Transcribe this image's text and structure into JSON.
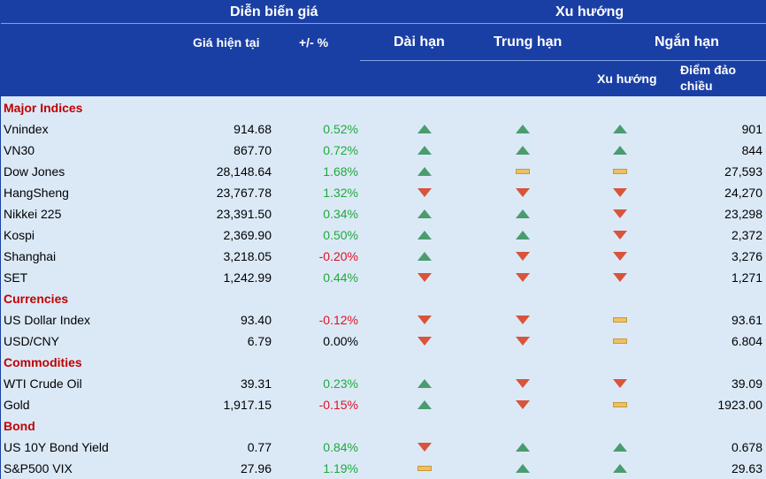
{
  "header": {
    "price_group": "Diễn biến giá",
    "trend_group": "Xu hướng",
    "current_price": "Giá hiện tại",
    "change_pct": "+/- %",
    "long_term": "Dài hạn",
    "mid_term": "Trung hạn",
    "short_term": "Ngắn hạn",
    "short_trend": "Xu hướng",
    "reversal_line1": "Điểm đảo",
    "reversal_line2": "chiều"
  },
  "colors": {
    "header_bg": "#1a3fa4",
    "body_bg": "#dbe9f7",
    "section": "#c00000",
    "positive": "#1fa93b",
    "negative": "#e01020",
    "up_icon": "#4a9c6e",
    "down_icon": "#d8543b",
    "flat_icon": "#f0c060"
  },
  "rows": [
    {
      "type": "section",
      "label": "Major Indices"
    },
    {
      "type": "item",
      "name": "Vnindex",
      "price": "914.68",
      "pct": "0.52%",
      "sign": "pos",
      "long": "up",
      "mid": "up",
      "short": "up",
      "reversal": "901"
    },
    {
      "type": "item",
      "name": "VN30",
      "price": "867.70",
      "pct": "0.72%",
      "sign": "pos",
      "long": "up",
      "mid": "up",
      "short": "up",
      "reversal": "844"
    },
    {
      "type": "item",
      "name": "Dow Jones",
      "price": "28,148.64",
      "pct": "1.68%",
      "sign": "pos",
      "long": "up",
      "mid": "flat",
      "short": "flat",
      "reversal": "27,593"
    },
    {
      "type": "item",
      "name": "HangSheng",
      "price": "23,767.78",
      "pct": "1.32%",
      "sign": "pos",
      "long": "down",
      "mid": "down",
      "short": "down",
      "reversal": "24,270"
    },
    {
      "type": "item",
      "name": "Nikkei 225",
      "price": "23,391.50",
      "pct": "0.34%",
      "sign": "pos",
      "long": "up",
      "mid": "up",
      "short": "down",
      "reversal": "23,298"
    },
    {
      "type": "item",
      "name": "Kospi",
      "price": "2,369.90",
      "pct": "0.50%",
      "sign": "pos",
      "long": "up",
      "mid": "up",
      "short": "down",
      "reversal": "2,372"
    },
    {
      "type": "item",
      "name": "Shanghai",
      "price": "3,218.05",
      "pct": "-0.20%",
      "sign": "neg",
      "long": "up",
      "mid": "down",
      "short": "down",
      "reversal": "3,276"
    },
    {
      "type": "item",
      "name": "SET",
      "price": "1,242.99",
      "pct": "0.44%",
      "sign": "pos",
      "long": "down",
      "mid": "down",
      "short": "down",
      "reversal": "1,271"
    },
    {
      "type": "section",
      "label": "Currencies"
    },
    {
      "type": "item",
      "name": "US Dollar Index",
      "price": "93.40",
      "pct": "-0.12%",
      "sign": "neg",
      "long": "down",
      "mid": "down",
      "short": "flat",
      "reversal": "93.61"
    },
    {
      "type": "item",
      "name": "USD/CNY",
      "price": "6.79",
      "pct": "0.00%",
      "sign": "zer",
      "long": "down",
      "mid": "down",
      "short": "flat",
      "reversal": "6.804"
    },
    {
      "type": "section",
      "label": "Commodities"
    },
    {
      "type": "item",
      "name": "WTI Crude Oil",
      "price": "39.31",
      "pct": "0.23%",
      "sign": "pos",
      "long": "up",
      "mid": "down",
      "short": "down",
      "reversal": "39.09"
    },
    {
      "type": "item",
      "name": "Gold",
      "price": "1,917.15",
      "pct": "-0.15%",
      "sign": "neg",
      "long": "up",
      "mid": "down",
      "short": "flat",
      "reversal": "1923.00"
    },
    {
      "type": "section",
      "label": "Bond"
    },
    {
      "type": "item",
      "name": "US 10Y Bond Yield",
      "price": "0.77",
      "pct": "0.84%",
      "sign": "pos",
      "long": "down",
      "mid": "up",
      "short": "up",
      "reversal": "0.678"
    },
    {
      "type": "item",
      "name": "S&P500 VIX",
      "price": "27.96",
      "pct": "1.19%",
      "sign": "pos",
      "long": "flat",
      "mid": "up",
      "short": "up",
      "reversal": "29.63"
    }
  ]
}
